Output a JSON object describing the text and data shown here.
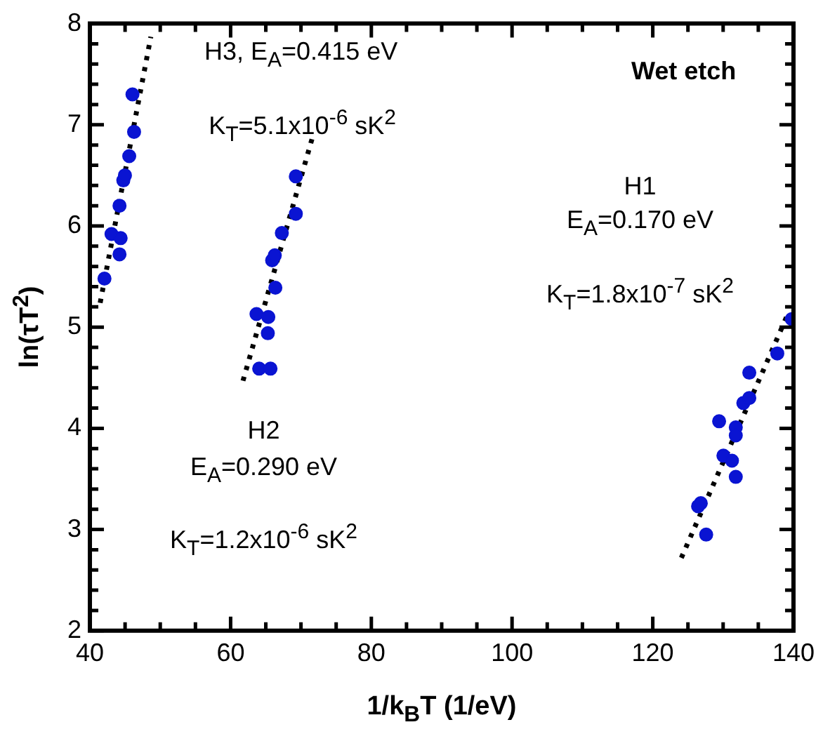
{
  "chart_data": {
    "type": "scatter",
    "xlabel": "1/k$_{B}$T (1/eV)",
    "ylabel": "ln(τT$^{2}$)",
    "xlim": [
      40,
      140
    ],
    "ylim": [
      2,
      8
    ],
    "xticks": [
      40,
      {
        "value": 45,
        "label": null
      },
      {
        "value": 50,
        "label": null
      },
      {
        "value": 55,
        "label": null
      },
      60,
      {
        "value": 65,
        "label": null
      },
      {
        "value": 70,
        "label": null
      },
      {
        "value": 75,
        "label": null
      },
      80,
      {
        "value": 85,
        "label": null
      },
      {
        "value": 90,
        "label": null
      },
      {
        "value": 95,
        "label": null
      },
      100,
      {
        "value": 105,
        "label": null
      },
      {
        "value": 110,
        "label": null
      },
      {
        "value": 115,
        "label": null
      },
      120,
      {
        "value": 125,
        "label": null
      },
      {
        "value": 130,
        "label": null
      },
      {
        "value": 135,
        "label": null
      },
      140
    ],
    "yticks": [
      2,
      {
        "value": 2.2,
        "label": null
      },
      {
        "value": 2.4,
        "label": null
      },
      {
        "value": 2.6,
        "label": null
      },
      {
        "value": 2.8,
        "label": null
      },
      3,
      {
        "value": 3.2,
        "label": null
      },
      {
        "value": 3.4,
        "label": null
      },
      {
        "value": 3.6,
        "label": null
      },
      {
        "value": 3.8,
        "label": null
      },
      4,
      {
        "value": 4.2,
        "label": null
      },
      {
        "value": 4.4,
        "label": null
      },
      {
        "value": 4.6,
        "label": null
      },
      {
        "value": 4.8,
        "label": null
      },
      5,
      {
        "value": 5.2,
        "label": null
      },
      {
        "value": 5.4,
        "label": null
      },
      {
        "value": 5.6,
        "label": null
      },
      {
        "value": 5.8,
        "label": null
      },
      6,
      {
        "value": 6.2,
        "label": null
      },
      {
        "value": 6.4,
        "label": null
      },
      {
        "value": 6.6,
        "label": null
      },
      {
        "value": 6.8,
        "label": null
      },
      7,
      {
        "value": 7.2,
        "label": null
      },
      {
        "value": 7.4,
        "label": null
      },
      {
        "value": 7.6,
        "label": null
      },
      {
        "value": 7.8,
        "label": null
      },
      8
    ],
    "grid": false,
    "legend": false,
    "marker": "circle",
    "series": [
      {
        "type": "scatter",
        "color": "#0a14d2",
        "x": [
          42.07,
          43.07,
          44.37,
          44.21,
          44.21,
          44.75,
          44.98,
          45.59,
          46.28,
          46.05
        ],
        "values": [
          5.48,
          5.92,
          5.88,
          5.72,
          6.2,
          6.45,
          6.5,
          6.69,
          6.93,
          7.3
        ]
      },
      {
        "type": "scatter",
        "color": "#0a14d2",
        "x": [
          63.68,
          65.36,
          65.29,
          64.06,
          65.67,
          66.36,
          65.9,
          66.28,
          67.28,
          69.27,
          69.27
        ],
        "values": [
          5.13,
          5.1,
          4.94,
          4.59,
          4.59,
          5.39,
          5.66,
          5.71,
          5.93,
          6.12,
          6.49
        ]
      },
      {
        "type": "scatter",
        "color": "#0a14d2",
        "x": [
          126.44,
          126.82,
          127.59,
          129.43,
          130.04,
          131.26,
          131.8,
          131.8,
          131.8,
          132.87,
          133.72,
          133.72,
          137.7,
          139.77
        ],
        "values": [
          3.23,
          3.26,
          2.95,
          4.07,
          3.73,
          3.68,
          3.52,
          4.01,
          3.93,
          4.25,
          4.3,
          4.55,
          4.74,
          5.08
        ]
      },
      {
        "type": "line",
        "color": "#000000",
        "line_style": "dotted",
        "marker": "none",
        "x": [
          41.46,
          48.66
        ],
        "values": [
          5.24,
          7.87
        ]
      },
      {
        "type": "line",
        "color": "#000000",
        "line_style": "dotted",
        "marker": "none",
        "x": [
          61.76,
          71.65
        ],
        "values": [
          4.47,
          6.88
        ]
      },
      {
        "type": "line",
        "color": "#000000",
        "line_style": "dotted",
        "marker": "none",
        "x": [
          124.06,
          139.39
        ],
        "values": [
          2.72,
          5.16
        ]
      }
    ],
    "annotations": [
      "Wet etch",
      "H3, E$_{A}$=0.415 eV",
      "K$_{T}$=5.1x10$^{-6}$ sK$^{2}$",
      "H2",
      "E$_{A}$=0.290 eV",
      "K$_{T}$=1.2x10$^{-6}$ sK$^{2}$",
      "H1",
      "E$_{A}$=0.170 eV",
      "K$_{T}$=1.8x10$^{-7}$ sK$^{2}$"
    ]
  }
}
